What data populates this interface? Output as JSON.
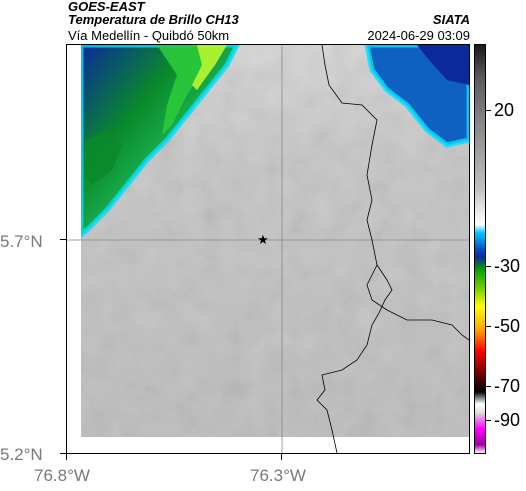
{
  "header": {
    "source": "GOES-EAST",
    "product": "Temperatura de Brillo CH13",
    "region": "Vía Medellín - Quibdó 50km",
    "agency": "SIATA",
    "timestamp": "2024-06-29 03:09"
  },
  "axes": {
    "lat_labels": [
      "5.7°N",
      "5.2°N"
    ],
    "lon_labels": [
      "76.8°W",
      "76.3°W"
    ]
  },
  "colorbar": {
    "labels": [
      "20",
      "-30",
      "-50",
      "-70",
      "-90"
    ],
    "colors": [
      "#1a1a1a",
      "#ffffff",
      "#00c8ff",
      "#0050c8",
      "#00a000",
      "#ffff00",
      "#ff0000",
      "#000000",
      "#ff00ff"
    ]
  },
  "marker": {
    "symbol": "★"
  }
}
